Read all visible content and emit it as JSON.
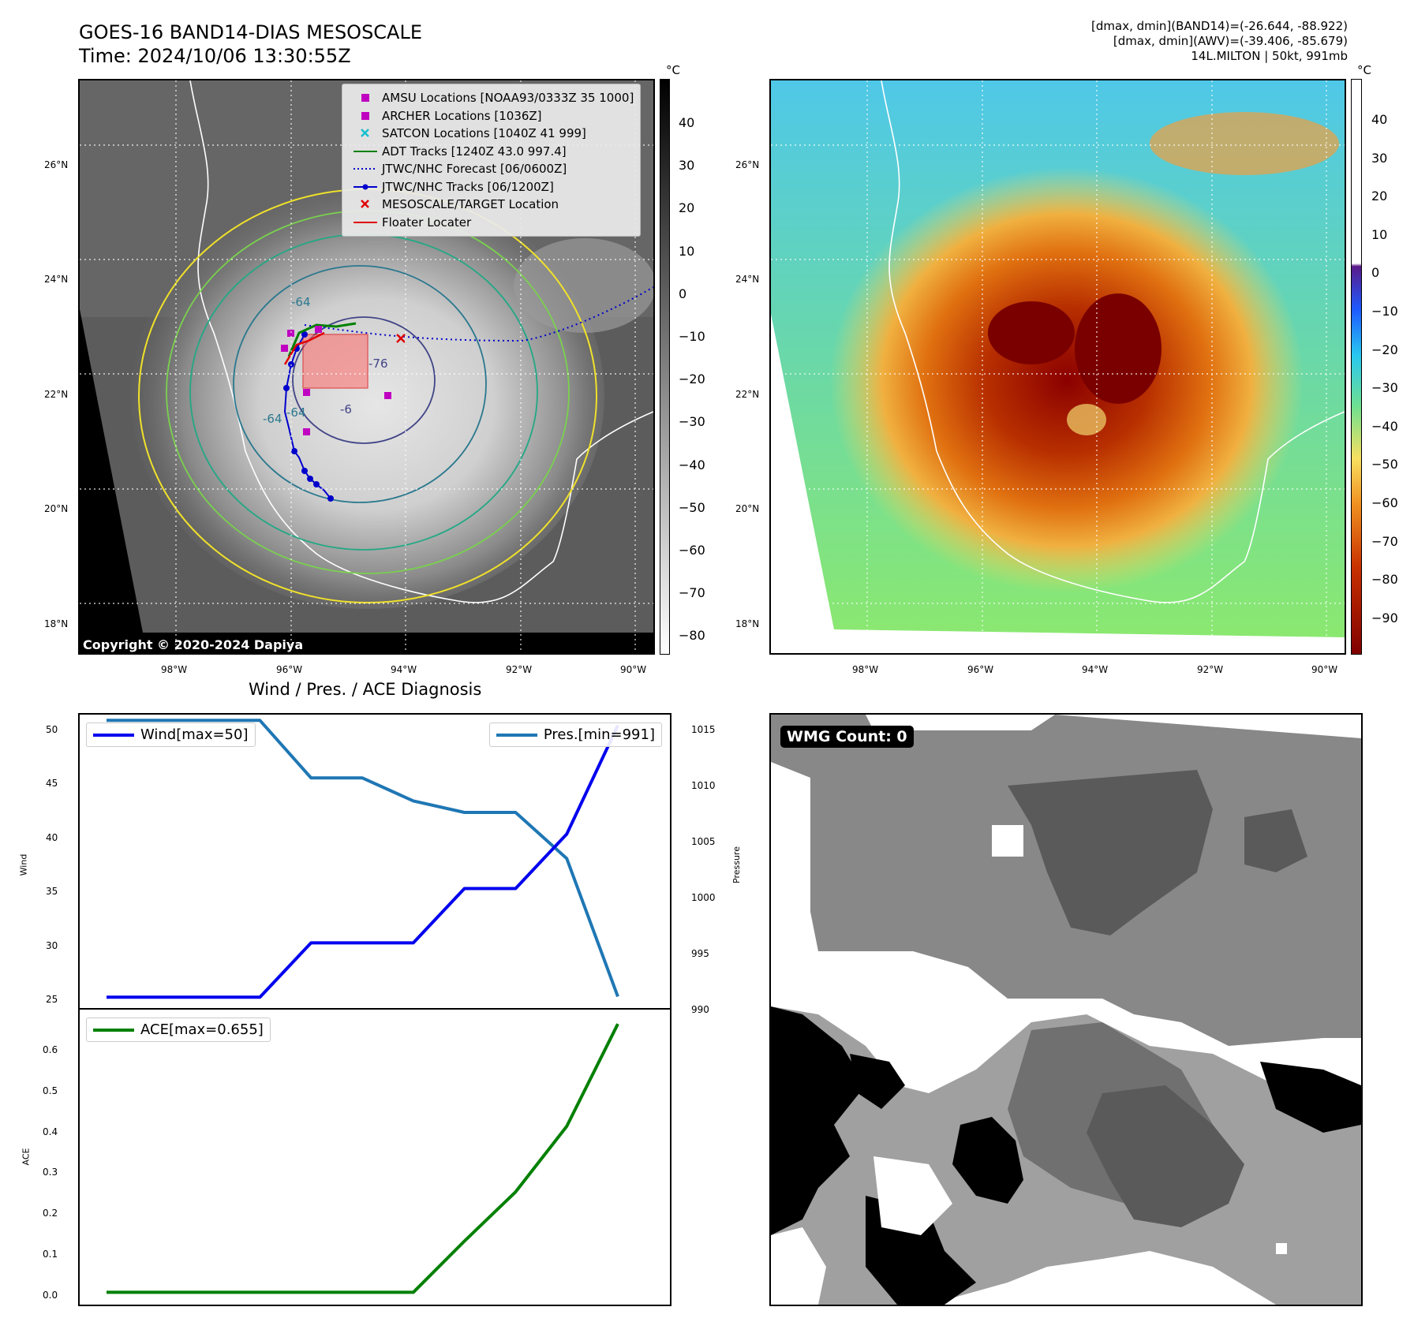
{
  "header": {
    "title_line1": "GOES-16 BAND14-DIAS MESOSCALE",
    "title_line2": "Time: 2024/10/06 13:30:55Z",
    "meta_line1": "[dmax, dmin](BAND14)=(-26.644, -88.922)",
    "meta_line2": "[dmax, dmin](AWV)=(-39.406, -85.679)",
    "meta_line3": "14L.MILTON | 50kt, 991mb"
  },
  "map": {
    "lat_labels": [
      "26°N",
      "24°N",
      "22°N",
      "20°N",
      "18°N"
    ],
    "lon_labels": [
      "98°W",
      "96°W",
      "94°W",
      "92°W",
      "90°W"
    ],
    "copyright": "Copyright © 2020-2024 Dapiya",
    "contour_labels": [
      "-64",
      "-64",
      "-64",
      "-76",
      "-6"
    ]
  },
  "legend": {
    "items": [
      {
        "label": "AMSU Locations [NOAA93/0333Z 35 1000]",
        "symbol": "square",
        "color": "#c000c0"
      },
      {
        "label": "ARCHER Locations [1036Z]",
        "symbol": "square",
        "color": "#c000c0"
      },
      {
        "label": "SATCON Locations [1040Z 41 999]",
        "symbol": "x",
        "color": "#17becf"
      },
      {
        "label": "ADT Tracks [1240Z 43.0 997.4]",
        "symbol": "line",
        "color": "#008000"
      },
      {
        "label": "JTWC/NHC Forecast [06/0600Z]",
        "symbol": "dotted",
        "color": "#0000cc"
      },
      {
        "label": "JTWC/NHC Tracks [06/1200Z]",
        "symbol": "linedot",
        "color": "#0000cc"
      },
      {
        "label": "MESOSCALE/TARGET Location",
        "symbol": "x",
        "color": "#e00000"
      },
      {
        "label": "Floater Locater",
        "symbol": "line",
        "color": "#e00000"
      }
    ]
  },
  "colorbar_left": {
    "unit": "°C",
    "ticks": [
      "40",
      "30",
      "20",
      "10",
      "0",
      "−10",
      "−20",
      "−30",
      "−40",
      "−50",
      "−60",
      "−70",
      "−80"
    ]
  },
  "colorbar_right": {
    "unit": "°C",
    "ticks": [
      "40",
      "30",
      "20",
      "10",
      "0",
      "−10",
      "−20",
      "−30",
      "−40",
      "−50",
      "−60",
      "−70",
      "−80",
      "−90"
    ]
  },
  "diagnosis": {
    "title": "Wind / Pres. / ACE Diagnosis",
    "wind_legend": "Wind[max=50]",
    "pres_legend": "Pres.[min=991]",
    "ace_legend": "ACE[max=0.655]",
    "wind_axis_label": "Wind",
    "pres_axis_label": "Pressure",
    "ace_axis_label": "ACE",
    "wind_ticks": [
      "50",
      "45",
      "40",
      "35",
      "30",
      "25"
    ],
    "pres_ticks": [
      "1015",
      "1010",
      "1005",
      "1000",
      "995",
      "990"
    ],
    "ace_ticks": [
      "0.6",
      "0.5",
      "0.4",
      "0.3",
      "0.2",
      "0.1",
      "0.0"
    ]
  },
  "wmg": {
    "label": "WMG Count: 0"
  },
  "colors": {
    "wind": "#0000ee",
    "pressure": "#1f77b4",
    "ace": "#008000"
  },
  "chart_data": [
    {
      "type": "line",
      "title": "Wind / Pres. / ACE Diagnosis",
      "x": [
        0,
        1,
        2,
        3,
        4,
        5,
        6,
        7,
        8,
        9,
        10
      ],
      "series": [
        {
          "name": "Wind[max=50]",
          "axis": "left",
          "values": [
            25,
            25,
            25,
            25,
            30,
            30,
            30,
            35,
            35,
            40,
            50
          ]
        },
        {
          "name": "Pres.[min=991]",
          "axis": "right",
          "values": [
            1015,
            1015,
            1015,
            1015,
            1010,
            1010,
            1008,
            1007,
            1007,
            1003,
            991
          ]
        }
      ],
      "ylabel": "Wind",
      "ylim": [
        24,
        51
      ],
      "y2label": "Pressure",
      "y2lim": [
        990,
        1015.5
      ]
    },
    {
      "type": "line",
      "x": [
        0,
        1,
        2,
        3,
        4,
        5,
        6,
        7,
        8,
        9,
        10
      ],
      "series": [
        {
          "name": "ACE[max=0.655]",
          "values": [
            0,
            0,
            0,
            0,
            0,
            0,
            0,
            0.125,
            0.245,
            0.405,
            0.655
          ]
        }
      ],
      "ylabel": "ACE",
      "ylim": [
        -0.03,
        0.69
      ]
    }
  ]
}
